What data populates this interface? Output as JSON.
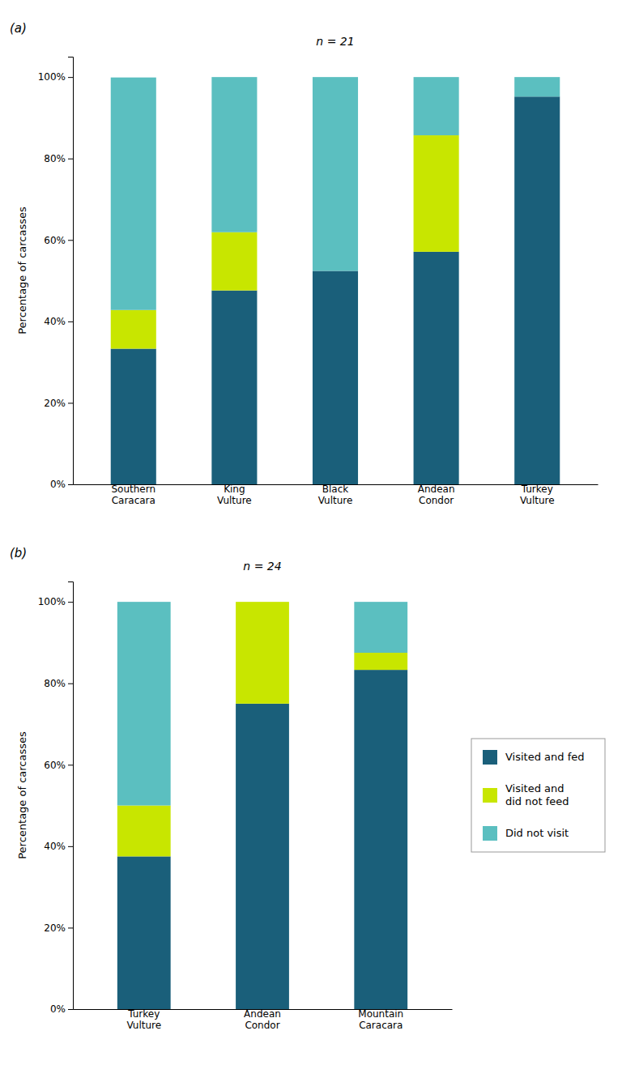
{
  "chart_data": [
    {
      "type": "bar",
      "stacked": true,
      "grid": false,
      "title": "n = 21",
      "subtitle": "(a)",
      "ylabel": "Percentage of carcasses",
      "categories": [
        "Southern\nCaracara",
        "King\nVulture",
        "Black\nVulture",
        "Andean\nCondor",
        "Turkey\nVulture"
      ],
      "series": [
        {
          "color": "#1a5f7a",
          "values": [
            33.3,
            47.6,
            52.4,
            57.1,
            95.2
          ]
        },
        {
          "color": "#c8e600",
          "values": [
            9.5,
            14.3,
            0.0,
            28.6,
            0.0
          ]
        },
        {
          "color": "#5bbfc0",
          "values": [
            57.1,
            38.1,
            47.6,
            14.3,
            4.8
          ]
        }
      ],
      "ylim": [
        0,
        105
      ],
      "yticks": [
        {
          "value": 0,
          "label": "0%"
        },
        {
          "value": 20,
          "label": "20%"
        },
        {
          "value": 40,
          "label": "40%"
        },
        {
          "value": 60,
          "label": "60%"
        },
        {
          "value": 80,
          "label": "80%"
        },
        {
          "value": 100,
          "label": "100%"
        }
      ]
    },
    {
      "type": "bar",
      "stacked": true,
      "grid": false,
      "legend": "right",
      "title": "n = 24",
      "subtitle": "(b)",
      "ylabel": "Percentage of carcasses",
      "categories": [
        "Turkey\nVulture",
        "Andean\nCondor",
        "Mountain\nCaracara"
      ],
      "series": [
        {
          "name": "Visited and fed",
          "color": "#1a5f7a",
          "values": [
            37.5,
            75.0,
            83.3
          ]
        },
        {
          "name": "Visited and\ndid not feed",
          "color": "#c8e600",
          "values": [
            12.5,
            25.0,
            4.2
          ]
        },
        {
          "name": "Did not visit",
          "color": "#5bbfc0",
          "values": [
            50.0,
            0.0,
            12.5
          ]
        }
      ],
      "ylim": [
        0,
        105
      ],
      "yticks": [
        {
          "value": 0,
          "label": "0%"
        },
        {
          "value": 20,
          "label": "20%"
        },
        {
          "value": 40,
          "label": "40%"
        },
        {
          "value": 60,
          "label": "60%"
        },
        {
          "value": 80,
          "label": "80%"
        },
        {
          "value": 100,
          "label": "100%"
        }
      ]
    }
  ]
}
